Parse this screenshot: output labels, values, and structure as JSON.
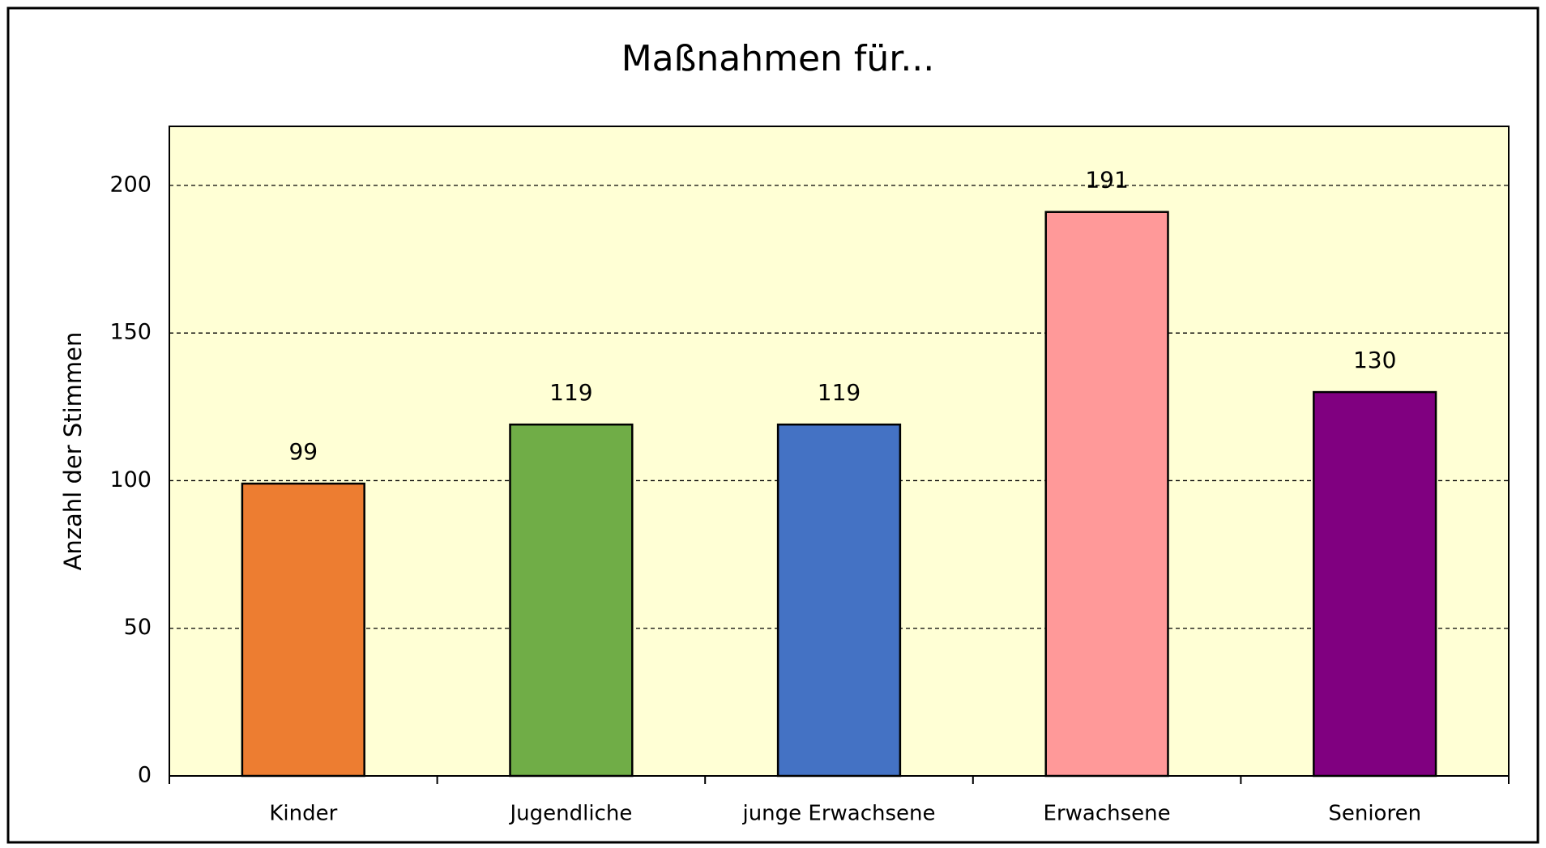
{
  "chart_data": {
    "type": "bar",
    "title": "Maßnahmen für...",
    "ylabel": "Anzahl der Stimmen",
    "categories": [
      "Kinder",
      "Jugendliche",
      "junge Erwachsene",
      "Erwachsene",
      "Senioren"
    ],
    "values": [
      99,
      119,
      119,
      191,
      130
    ],
    "colors": [
      "#ed7d31",
      "#70ad47",
      "#4472c4",
      "#ff9999",
      "#800080"
    ],
    "ylim": [
      0,
      220
    ],
    "yticks": [
      0,
      50,
      100,
      150,
      200
    ],
    "grid": true
  }
}
